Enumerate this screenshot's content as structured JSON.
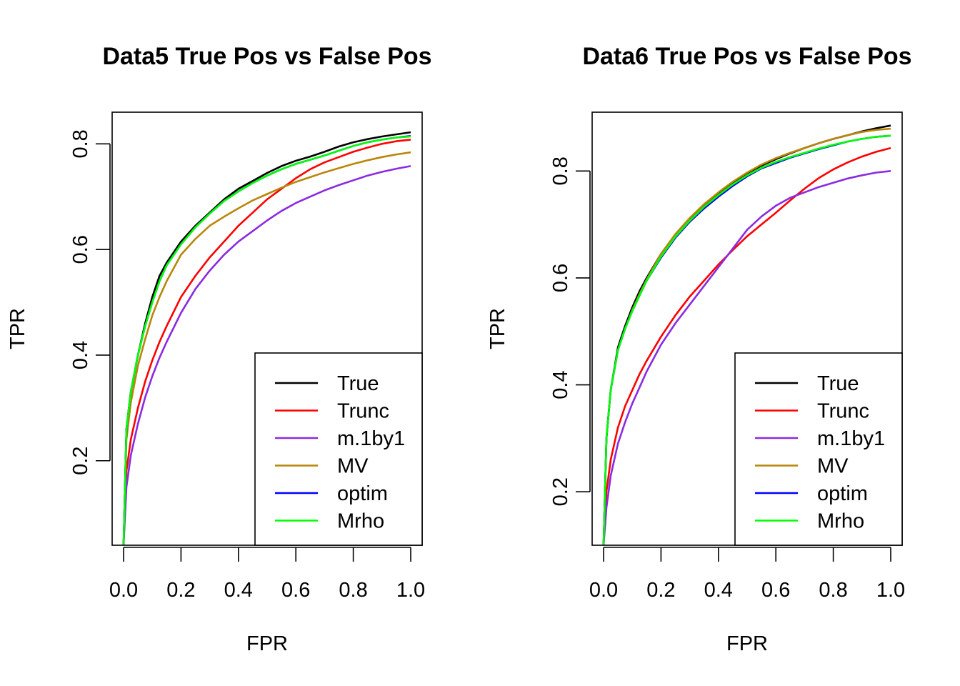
{
  "chart_data": [
    {
      "type": "line",
      "title": "Data5 True Pos vs False Pos",
      "xlabel": "FPR",
      "ylabel": "TPR",
      "xlim": [
        0,
        1
      ],
      "ylim": [
        0.04,
        0.86
      ],
      "xticks": [
        0,
        0.2,
        0.4,
        0.6,
        0.8,
        1
      ],
      "xtick_labels": [
        "0.0",
        "0.2",
        "0.4",
        "0.6",
        "0.8",
        "1.0"
      ],
      "yticks": [
        0.2,
        0.4,
        0.6,
        0.8
      ],
      "ytick_labels": [
        "0.2",
        "0.4",
        "0.6",
        "0.8"
      ],
      "legend_position": "bottom-right",
      "x": [
        0,
        0.01,
        0.025,
        0.05,
        0.075,
        0.1,
        0.125,
        0.15,
        0.2,
        0.25,
        0.3,
        0.35,
        0.4,
        0.45,
        0.5,
        0.55,
        0.6,
        0.65,
        0.7,
        0.75,
        0.8,
        0.85,
        0.9,
        0.95,
        1
      ],
      "series": [
        {
          "name": "True",
          "color": "#000000",
          "values": [
            0.04,
            0.26,
            0.33,
            0.4,
            0.46,
            0.51,
            0.55,
            0.575,
            0.615,
            0.645,
            0.67,
            0.695,
            0.715,
            0.73,
            0.745,
            0.758,
            0.768,
            0.776,
            0.785,
            0.795,
            0.803,
            0.809,
            0.814,
            0.818,
            0.822
          ]
        },
        {
          "name": "Trunc",
          "color": "#ff0000",
          "values": [
            0.04,
            0.18,
            0.24,
            0.3,
            0.35,
            0.39,
            0.425,
            0.455,
            0.51,
            0.55,
            0.585,
            0.615,
            0.645,
            0.67,
            0.695,
            0.715,
            0.735,
            0.752,
            0.765,
            0.775,
            0.785,
            0.793,
            0.8,
            0.805,
            0.808
          ]
        },
        {
          "name": "m.1by1",
          "color": "#8a2be2",
          "values": [
            0.04,
            0.15,
            0.21,
            0.27,
            0.32,
            0.36,
            0.395,
            0.425,
            0.48,
            0.525,
            0.56,
            0.59,
            0.615,
            0.635,
            0.655,
            0.673,
            0.688,
            0.7,
            0.712,
            0.722,
            0.731,
            0.74,
            0.747,
            0.753,
            0.758
          ]
        },
        {
          "name": "MV",
          "color": "#b8860b",
          "values": [
            0.04,
            0.24,
            0.31,
            0.38,
            0.43,
            0.475,
            0.51,
            0.54,
            0.59,
            0.62,
            0.645,
            0.662,
            0.678,
            0.693,
            0.705,
            0.717,
            0.728,
            0.737,
            0.746,
            0.754,
            0.762,
            0.769,
            0.775,
            0.78,
            0.784
          ]
        },
        {
          "name": "optim",
          "color": "#0000ff",
          "values": [
            0.04,
            0.26,
            0.33,
            0.4,
            0.455,
            0.5,
            0.54,
            0.57,
            0.61,
            0.642,
            0.668,
            0.692,
            0.71,
            0.726,
            0.74,
            0.752,
            0.762,
            0.77,
            0.778,
            0.787,
            0.796,
            0.803,
            0.808,
            0.812,
            0.815
          ]
        },
        {
          "name": "Mrho",
          "color": "#00ff00",
          "values": [
            0.04,
            0.26,
            0.33,
            0.4,
            0.455,
            0.5,
            0.54,
            0.57,
            0.61,
            0.642,
            0.668,
            0.692,
            0.71,
            0.726,
            0.74,
            0.752,
            0.762,
            0.77,
            0.778,
            0.787,
            0.796,
            0.803,
            0.808,
            0.812,
            0.814
          ]
        }
      ]
    },
    {
      "type": "line",
      "title": "Data6 True Pos vs False Pos",
      "xlabel": "FPR",
      "ylabel": "TPR",
      "xlim": [
        0,
        1
      ],
      "ylim": [
        0.1,
        0.91
      ],
      "xticks": [
        0,
        0.2,
        0.4,
        0.6,
        0.8,
        1
      ],
      "xtick_labels": [
        "0.0",
        "0.2",
        "0.4",
        "0.6",
        "0.8",
        "1.0"
      ],
      "yticks": [
        0.2,
        0.4,
        0.6,
        0.8
      ],
      "ytick_labels": [
        "0.2",
        "0.4",
        "0.6",
        "0.8"
      ],
      "legend_position": "bottom-right",
      "x": [
        0,
        0.01,
        0.025,
        0.05,
        0.075,
        0.1,
        0.125,
        0.15,
        0.2,
        0.25,
        0.3,
        0.35,
        0.4,
        0.45,
        0.5,
        0.55,
        0.6,
        0.65,
        0.7,
        0.75,
        0.8,
        0.85,
        0.9,
        0.95,
        1
      ],
      "series": [
        {
          "name": "True",
          "color": "#000000",
          "values": [
            0.1,
            0.3,
            0.39,
            0.47,
            0.51,
            0.545,
            0.575,
            0.6,
            0.645,
            0.68,
            0.71,
            0.735,
            0.758,
            0.778,
            0.796,
            0.81,
            0.822,
            0.833,
            0.843,
            0.852,
            0.86,
            0.867,
            0.874,
            0.88,
            0.885
          ]
        },
        {
          "name": "Trunc",
          "color": "#ff0000",
          "values": [
            0.1,
            0.2,
            0.26,
            0.32,
            0.36,
            0.39,
            0.42,
            0.445,
            0.49,
            0.53,
            0.565,
            0.595,
            0.625,
            0.652,
            0.678,
            0.7,
            0.722,
            0.745,
            0.767,
            0.787,
            0.803,
            0.816,
            0.827,
            0.836,
            0.843
          ]
        },
        {
          "name": "m.1by1",
          "color": "#8a2be2",
          "values": [
            0.1,
            0.17,
            0.23,
            0.29,
            0.33,
            0.365,
            0.395,
            0.425,
            0.475,
            0.515,
            0.55,
            0.585,
            0.62,
            0.655,
            0.69,
            0.715,
            0.735,
            0.75,
            0.76,
            0.77,
            0.778,
            0.786,
            0.792,
            0.797,
            0.8
          ]
        },
        {
          "name": "MV",
          "color": "#b8860b",
          "values": [
            0.1,
            0.3,
            0.39,
            0.465,
            0.505,
            0.54,
            0.57,
            0.597,
            0.645,
            0.682,
            0.712,
            0.738,
            0.76,
            0.78,
            0.797,
            0.812,
            0.824,
            0.834,
            0.843,
            0.852,
            0.86,
            0.867,
            0.873,
            0.877,
            0.879
          ]
        },
        {
          "name": "optim",
          "color": "#0000ff",
          "values": [
            0.1,
            0.3,
            0.39,
            0.465,
            0.505,
            0.538,
            0.567,
            0.595,
            0.638,
            0.675,
            0.705,
            0.73,
            0.752,
            0.772,
            0.79,
            0.805,
            0.815,
            0.825,
            0.833,
            0.841,
            0.848,
            0.855,
            0.86,
            0.864,
            0.866
          ]
        },
        {
          "name": "Mrho",
          "color": "#00ff00",
          "values": [
            0.1,
            0.3,
            0.39,
            0.465,
            0.505,
            0.538,
            0.567,
            0.595,
            0.64,
            0.677,
            0.707,
            0.733,
            0.755,
            0.775,
            0.792,
            0.806,
            0.817,
            0.826,
            0.834,
            0.842,
            0.849,
            0.855,
            0.86,
            0.864,
            0.866
          ]
        }
      ]
    }
  ]
}
